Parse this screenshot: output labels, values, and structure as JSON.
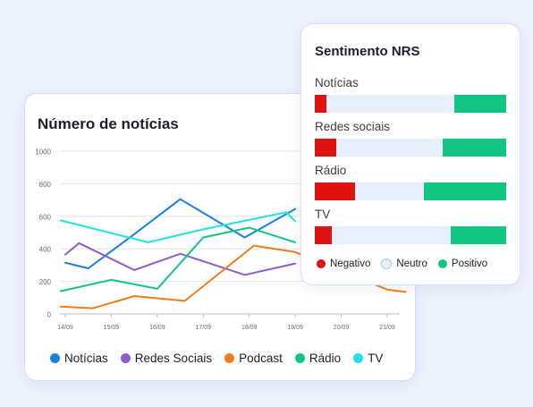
{
  "line_card": {
    "title": "Número de notícias",
    "legend": [
      {
        "label": "Notícias",
        "color": "#1a7fe0"
      },
      {
        "label": "Redes Sociais",
        "color": "#8b5ccd"
      },
      {
        "label": "Podcast",
        "color": "#f07d1a"
      },
      {
        "label": "Rádio",
        "color": "#12c583"
      },
      {
        "label": "TV",
        "color": "#20e3e0"
      }
    ]
  },
  "nrs_card": {
    "title": "Sentimento NRS",
    "rows": [
      {
        "label": "Notícias",
        "negative": 0.06,
        "neutral": 0.67,
        "positive": 0.27
      },
      {
        "label": "Redes sociais",
        "negative": 0.11,
        "neutral": 0.56,
        "positive": 0.33
      },
      {
        "label": "Rádio",
        "negative": 0.21,
        "neutral": 0.36,
        "positive": 0.43
      },
      {
        "label": "TV",
        "negative": 0.09,
        "neutral": 0.62,
        "positive": 0.29
      }
    ],
    "legend": [
      {
        "label": "Negativo",
        "color": "#e0120f"
      },
      {
        "label": "Neutro",
        "color": "#e6effb"
      },
      {
        "label": "Positivo",
        "color": "#12c583"
      }
    ]
  },
  "chart_data": {
    "type": "line",
    "x": [
      "14/09",
      "15/09",
      "16/09",
      "17/09",
      "18/09",
      "19/09",
      "20/09",
      "21/09"
    ],
    "ylim": [
      0,
      1000
    ],
    "yticks": [
      0,
      200,
      400,
      600,
      800,
      1000
    ],
    "grid": "horizontal",
    "series": [
      {
        "name": "Notícias",
        "color": "#1a7fe0",
        "points": [
          [
            0,
            315
          ],
          [
            0.5,
            280
          ],
          [
            1.5,
            490
          ],
          [
            2.5,
            705
          ],
          [
            3.9,
            470
          ],
          [
            5,
            645
          ]
        ]
      },
      {
        "name": "Redes Sociais",
        "color": "#8b5ccd",
        "points": [
          [
            0,
            365
          ],
          [
            0.3,
            435
          ],
          [
            1.5,
            270
          ],
          [
            2.5,
            370
          ],
          [
            3.9,
            240
          ],
          [
            5,
            310
          ]
        ]
      },
      {
        "name": "Podcast",
        "color": "#f07d1a",
        "points": [
          [
            -0.1,
            45
          ],
          [
            0.6,
            35
          ],
          [
            1.5,
            110
          ],
          [
            2.6,
            80
          ],
          [
            4.1,
            420
          ],
          [
            5,
            380
          ],
          [
            7,
            150
          ],
          [
            7.4,
            135
          ]
        ]
      },
      {
        "name": "Rádio",
        "color": "#12c583",
        "points": [
          [
            -0.1,
            140
          ],
          [
            1,
            210
          ],
          [
            2,
            155
          ],
          [
            3,
            470
          ],
          [
            4,
            530
          ],
          [
            5,
            440
          ]
        ]
      },
      {
        "name": "TV",
        "color": "#20e3e0",
        "points": [
          [
            -0.1,
            575
          ],
          [
            1.8,
            440
          ],
          [
            3,
            520
          ],
          [
            4.8,
            625
          ],
          [
            5,
            570
          ]
        ]
      }
    ]
  }
}
